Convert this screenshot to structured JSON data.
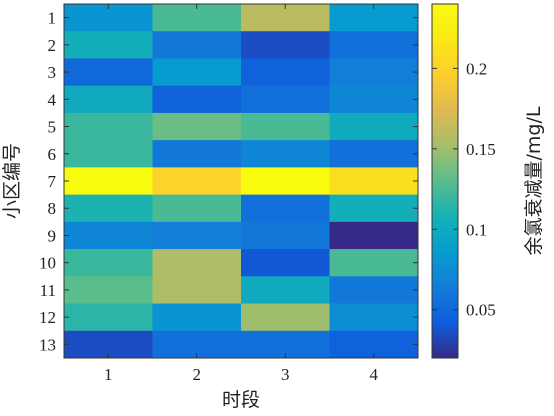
{
  "chart_data": {
    "type": "heatmap",
    "xlabel": "时段",
    "ylabel": "小区编号",
    "colorbar_label": "余氯衰减量/mg/L",
    "colormap": "parula",
    "x_categories": [
      "1",
      "2",
      "3",
      "4"
    ],
    "y_categories": [
      "1",
      "2",
      "3",
      "4",
      "5",
      "6",
      "7",
      "8",
      "9",
      "10",
      "11",
      "12",
      "13"
    ],
    "values": [
      [
        0.08,
        0.125,
        0.16,
        0.085
      ],
      [
        0.105,
        0.06,
        0.035,
        0.055
      ],
      [
        0.05,
        0.085,
        0.045,
        0.065
      ],
      [
        0.1,
        0.045,
        0.055,
        0.07
      ],
      [
        0.12,
        0.135,
        0.125,
        0.1
      ],
      [
        0.12,
        0.06,
        0.07,
        0.055
      ],
      [
        0.24,
        0.2,
        0.24,
        0.21
      ],
      [
        0.11,
        0.125,
        0.055,
        0.105
      ],
      [
        0.07,
        0.065,
        0.06,
        0.02
      ],
      [
        0.12,
        0.155,
        0.04,
        0.125
      ],
      [
        0.13,
        0.155,
        0.1,
        0.06
      ],
      [
        0.115,
        0.08,
        0.15,
        0.075
      ],
      [
        0.035,
        0.055,
        0.055,
        0.045
      ]
    ],
    "color_range": [
      0.02,
      0.24
    ],
    "colorbar_ticks": [
      0.05,
      0.1,
      0.15,
      0.2
    ],
    "colorbar_tick_labels": [
      "0.05",
      "0.1",
      "0.15",
      "0.2"
    ]
  }
}
